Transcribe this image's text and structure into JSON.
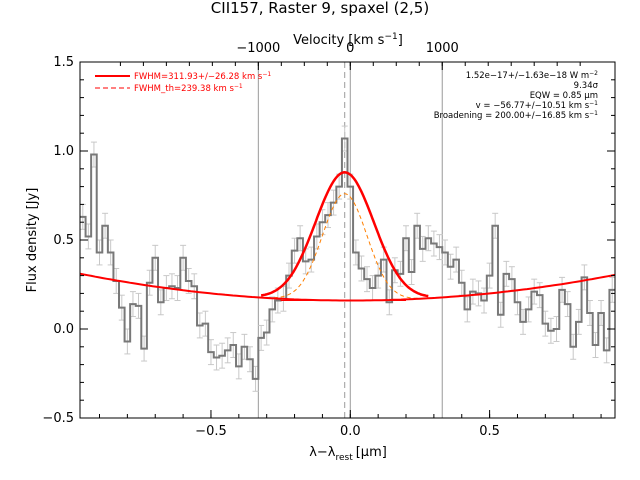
{
  "chart_data": {
    "type": "line",
    "title": "CII157, Raster 9, spaxel (2,5)",
    "xlabel": "λ−λ",
    "xlabel_sub": "rest",
    "xlabel_unit": "[μm]",
    "ylabel": "Flux density [Jy]",
    "top_axis_label": "Velocity [km s",
    "top_axis_label_sup": "−1",
    "top_axis_label_end": "]",
    "xlim": [
      -0.97,
      0.95
    ],
    "ylim": [
      -0.5,
      1.5
    ],
    "xticks": [
      -0.5,
      0.0,
      0.5
    ],
    "xtick_labels": [
      "−0.5",
      "0.0",
      "0.5"
    ],
    "yticks": [
      -0.5,
      0.0,
      0.5,
      1.0,
      1.5
    ],
    "ytick_labels": [
      "−0.5",
      "0.0",
      "0.5",
      "1.0",
      "1.5"
    ],
    "top_ticks_velocity": [
      -1000,
      0,
      1000
    ],
    "top_tick_labels": [
      "−1000",
      "0",
      "1000"
    ],
    "vertical_lines_solid": [
      -0.33,
      0.0,
      0.33
    ],
    "vertical_line_dashed": -0.02,
    "legend": {
      "placement": "top-left",
      "entries": [
        {
          "text": "FWHM=311.93+/−26.28 km s",
          "sup": "−1",
          "style": "solid"
        },
        {
          "text": "FWHM_th=239.38 km s",
          "sup": "−1",
          "style": "dashed"
        }
      ]
    },
    "annotations": [
      {
        "text": "1.52e−17+/−1.63e−18 W m",
        "sup": "−2"
      },
      {
        "text": "9.34σ",
        "sup": ""
      },
      {
        "text": "EQW = 0.85 μm",
        "sup": ""
      },
      {
        "text": "v = −56.77+/−10.51 km s",
        "sup": "−1"
      },
      {
        "text": "Broadening = 200.00+/−16.85 km s",
        "sup": "−1"
      }
    ],
    "series": [
      {
        "kind": "data",
        "x": [
          -0.96,
          -0.94,
          -0.92,
          -0.9,
          -0.88,
          -0.86,
          -0.84,
          -0.82,
          -0.8,
          -0.78,
          -0.76,
          -0.74,
          -0.72,
          -0.7,
          -0.68,
          -0.66,
          -0.64,
          -0.62,
          -0.6,
          -0.58,
          -0.56,
          -0.54,
          -0.52,
          -0.5,
          -0.48,
          -0.46,
          -0.44,
          -0.42,
          -0.4,
          -0.38,
          -0.36,
          -0.34,
          -0.32,
          -0.3,
          -0.28,
          -0.26,
          -0.24,
          -0.22,
          -0.2,
          -0.18,
          -0.16,
          -0.14,
          -0.12,
          -0.1,
          -0.08,
          -0.06,
          -0.04,
          -0.02,
          0.0,
          0.02,
          0.04,
          0.06,
          0.08,
          0.1,
          0.12,
          0.14,
          0.16,
          0.18,
          0.2,
          0.22,
          0.24,
          0.26,
          0.28,
          0.3,
          0.32,
          0.34,
          0.36,
          0.38,
          0.4,
          0.42,
          0.44,
          0.46,
          0.48,
          0.5,
          0.52,
          0.54,
          0.56,
          0.58,
          0.6,
          0.62,
          0.64,
          0.66,
          0.68,
          0.7,
          0.72,
          0.74,
          0.76,
          0.78,
          0.8,
          0.82,
          0.84,
          0.86,
          0.88,
          0.9,
          0.92,
          0.94
        ],
        "y": [
          0.63,
          0.52,
          0.98,
          0.43,
          0.58,
          0.43,
          0.27,
          0.12,
          -0.07,
          0.14,
          0.13,
          -0.11,
          0.26,
          0.4,
          0.15,
          0.23,
          0.24,
          0.23,
          0.4,
          0.27,
          0.24,
          0.02,
          0.03,
          -0.13,
          -0.16,
          -0.15,
          -0.12,
          -0.09,
          -0.21,
          -0.1,
          -0.17,
          -0.28,
          -0.05,
          -0.02,
          0.11,
          0.16,
          0.17,
          0.3,
          0.44,
          0.51,
          0.38,
          0.39,
          0.52,
          0.6,
          0.64,
          0.71,
          0.8,
          1.07,
          0.8,
          0.43,
          0.34,
          0.28,
          0.23,
          0.3,
          0.39,
          0.15,
          0.33,
          0.31,
          0.51,
          0.32,
          0.58,
          0.45,
          0.51,
          0.48,
          0.46,
          0.43,
          0.35,
          0.39,
          0.26,
          0.11,
          0.21,
          0.2,
          0.16,
          0.3,
          0.58,
          0.08,
          0.31,
          0.28,
          0.15,
          0.04,
          0.11,
          0.21,
          0.19,
          0.03,
          -0.01,
          0.0,
          0.22,
          0.14,
          -0.1,
          0.04,
          0.29,
          0.09,
          -0.09,
          0.09,
          -0.12,
          0.22
        ],
        "yerr": 0.07
      },
      {
        "kind": "continuum",
        "baseline": 0.16,
        "curvature": 0.16
      },
      {
        "kind": "total_fit",
        "center": -0.02,
        "amplitude": 0.72,
        "sigma": 0.105
      },
      {
        "kind": "thermal_fit",
        "center": -0.02,
        "amplitude": 0.6,
        "sigma": 0.08
      }
    ]
  }
}
